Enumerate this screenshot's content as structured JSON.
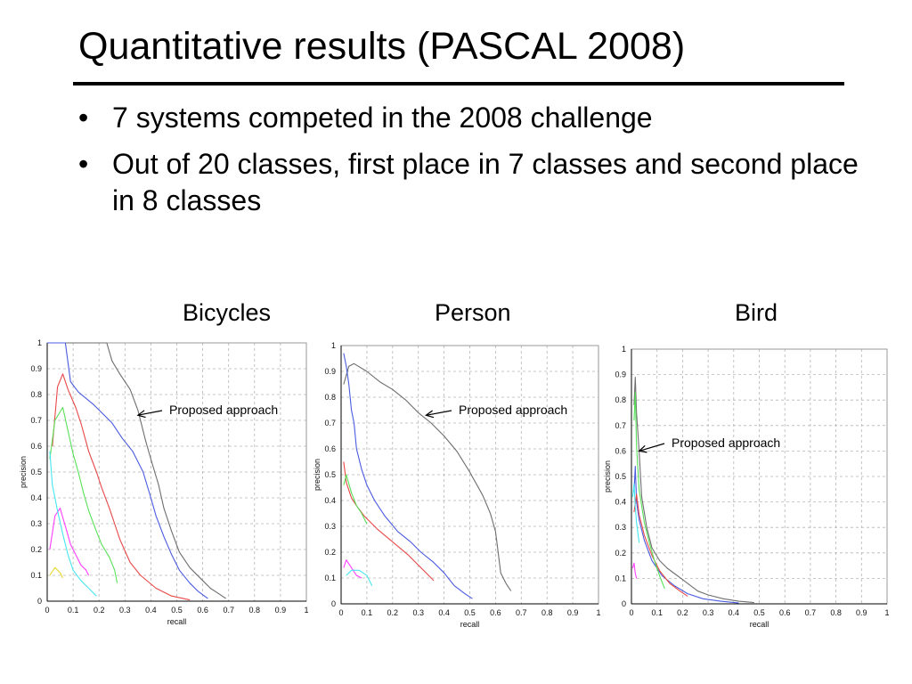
{
  "slide": {
    "title": "Quantitative results (PASCAL 2008)",
    "bullets": [
      "7 systems competed in the 2008 challenge",
      "Out of 20 classes, first place in 7 classes and second place in 8 classes"
    ]
  },
  "chart_data": [
    {
      "type": "line",
      "title": "Bicycles",
      "xlabel": "recall",
      "ylabel": "precision",
      "xlim": [
        0,
        1
      ],
      "ylim": [
        0,
        1
      ],
      "ticks": [
        "0",
        "0.1",
        "0.2",
        "0.3",
        "0.4",
        "0.5",
        "0.6",
        "0.7",
        "0.8",
        "0.9",
        "1"
      ],
      "grid": true,
      "annotation": {
        "text": "Proposed approach",
        "points_to": [
          0.35,
          0.72
        ]
      },
      "series": [
        {
          "color": "#6e6e6e",
          "points": [
            [
              0,
              1
            ],
            [
              0.23,
              1
            ],
            [
              0.25,
              0.93
            ],
            [
              0.28,
              0.88
            ],
            [
              0.32,
              0.82
            ],
            [
              0.35,
              0.74
            ],
            [
              0.38,
              0.62
            ],
            [
              0.4,
              0.55
            ],
            [
              0.43,
              0.45
            ],
            [
              0.45,
              0.36
            ],
            [
              0.48,
              0.27
            ],
            [
              0.51,
              0.19
            ],
            [
              0.55,
              0.13
            ],
            [
              0.6,
              0.08
            ],
            [
              0.63,
              0.05
            ],
            [
              0.66,
              0.03
            ],
            [
              0.69,
              0.01
            ]
          ]
        },
        {
          "color": "#4a5be0",
          "points": [
            [
              0,
              1
            ],
            [
              0.07,
              1
            ],
            [
              0.09,
              0.85
            ],
            [
              0.12,
              0.81
            ],
            [
              0.18,
              0.76
            ],
            [
              0.25,
              0.69
            ],
            [
              0.29,
              0.63
            ],
            [
              0.33,
              0.58
            ],
            [
              0.37,
              0.5
            ],
            [
              0.4,
              0.4
            ],
            [
              0.42,
              0.33
            ],
            [
              0.45,
              0.25
            ],
            [
              0.48,
              0.18
            ],
            [
              0.51,
              0.12
            ],
            [
              0.55,
              0.07
            ],
            [
              0.58,
              0.04
            ],
            [
              0.62,
              0.01
            ]
          ]
        },
        {
          "color": "#e84848",
          "points": [
            [
              0.02,
              0.6
            ],
            [
              0.04,
              0.83
            ],
            [
              0.06,
              0.88
            ],
            [
              0.08,
              0.82
            ],
            [
              0.11,
              0.75
            ],
            [
              0.13,
              0.69
            ],
            [
              0.16,
              0.58
            ],
            [
              0.19,
              0.5
            ],
            [
              0.21,
              0.44
            ],
            [
              0.24,
              0.36
            ],
            [
              0.26,
              0.3
            ],
            [
              0.28,
              0.24
            ],
            [
              0.32,
              0.15
            ],
            [
              0.36,
              0.1
            ],
            [
              0.42,
              0.05
            ],
            [
              0.48,
              0.02
            ],
            [
              0.55,
              0.005
            ]
          ]
        },
        {
          "color": "#58e058",
          "points": [
            [
              0.01,
              0.55
            ],
            [
              0.03,
              0.7
            ],
            [
              0.06,
              0.75
            ],
            [
              0.08,
              0.66
            ],
            [
              0.1,
              0.57
            ],
            [
              0.12,
              0.5
            ],
            [
              0.14,
              0.42
            ],
            [
              0.16,
              0.35
            ],
            [
              0.19,
              0.27
            ],
            [
              0.21,
              0.22
            ],
            [
              0.24,
              0.17
            ],
            [
              0.26,
              0.12
            ],
            [
              0.27,
              0.07
            ]
          ]
        },
        {
          "color": "#ff3dff",
          "points": [
            [
              0.01,
              0.2
            ],
            [
              0.03,
              0.33
            ],
            [
              0.05,
              0.36
            ],
            [
              0.07,
              0.29
            ],
            [
              0.09,
              0.22
            ],
            [
              0.11,
              0.18
            ],
            [
              0.13,
              0.14
            ],
            [
              0.15,
              0.12
            ],
            [
              0.16,
              0.1
            ]
          ]
        },
        {
          "color": "#46e6f0",
          "points": [
            [
              0.01,
              0.58
            ],
            [
              0.02,
              0.45
            ],
            [
              0.04,
              0.35
            ],
            [
              0.06,
              0.26
            ],
            [
              0.08,
              0.18
            ],
            [
              0.1,
              0.12
            ],
            [
              0.13,
              0.08
            ],
            [
              0.16,
              0.05
            ],
            [
              0.19,
              0.02
            ]
          ]
        },
        {
          "color": "#e6d72a",
          "points": [
            [
              0.01,
              0.1
            ],
            [
              0.03,
              0.13
            ],
            [
              0.05,
              0.11
            ],
            [
              0.06,
              0.09
            ]
          ]
        }
      ]
    },
    {
      "type": "line",
      "title": "Person",
      "xlabel": "recall",
      "ylabel": "precision",
      "xlim": [
        0,
        1
      ],
      "ylim": [
        0,
        1
      ],
      "ticks": [
        "0",
        "0.1",
        "0.2",
        "0.3",
        "0.4",
        "0.5",
        "0.6",
        "0.7",
        "0.8",
        "0.9",
        "1"
      ],
      "grid": true,
      "annotation": {
        "text": "Proposed approach",
        "points_to": [
          0.33,
          0.73
        ]
      },
      "series": [
        {
          "color": "#6e6e6e",
          "points": [
            [
              0.01,
              0.85
            ],
            [
              0.03,
              0.92
            ],
            [
              0.05,
              0.93
            ],
            [
              0.1,
              0.9
            ],
            [
              0.15,
              0.86
            ],
            [
              0.2,
              0.83
            ],
            [
              0.25,
              0.79
            ],
            [
              0.3,
              0.74
            ],
            [
              0.35,
              0.7
            ],
            [
              0.4,
              0.65
            ],
            [
              0.45,
              0.59
            ],
            [
              0.5,
              0.51
            ],
            [
              0.55,
              0.42
            ],
            [
              0.58,
              0.35
            ],
            [
              0.6,
              0.28
            ],
            [
              0.61,
              0.2
            ],
            [
              0.62,
              0.12
            ],
            [
              0.64,
              0.08
            ],
            [
              0.66,
              0.05
            ]
          ]
        },
        {
          "color": "#4a5be0",
          "points": [
            [
              0.01,
              0.97
            ],
            [
              0.02,
              0.92
            ],
            [
              0.03,
              0.85
            ],
            [
              0.04,
              0.75
            ],
            [
              0.05,
              0.7
            ],
            [
              0.06,
              0.6
            ],
            [
              0.08,
              0.52
            ],
            [
              0.1,
              0.46
            ],
            [
              0.13,
              0.4
            ],
            [
              0.17,
              0.34
            ],
            [
              0.22,
              0.28
            ],
            [
              0.27,
              0.24
            ],
            [
              0.31,
              0.2
            ],
            [
              0.36,
              0.16
            ],
            [
              0.4,
              0.12
            ],
            [
              0.44,
              0.07
            ],
            [
              0.48,
              0.04
            ],
            [
              0.51,
              0.02
            ]
          ]
        },
        {
          "color": "#e84848",
          "points": [
            [
              0.01,
              0.55
            ],
            [
              0.02,
              0.47
            ],
            [
              0.04,
              0.41
            ],
            [
              0.06,
              0.38
            ],
            [
              0.09,
              0.34
            ],
            [
              0.14,
              0.29
            ],
            [
              0.2,
              0.24
            ],
            [
              0.26,
              0.19
            ],
            [
              0.3,
              0.15
            ],
            [
              0.34,
              0.11
            ],
            [
              0.36,
              0.09
            ]
          ]
        },
        {
          "color": "#58e058",
          "points": [
            [
              0.01,
              0.46
            ],
            [
              0.02,
              0.5
            ],
            [
              0.04,
              0.43
            ],
            [
              0.06,
              0.38
            ],
            [
              0.08,
              0.35
            ],
            [
              0.1,
              0.31
            ]
          ]
        },
        {
          "color": "#ff3dff",
          "points": [
            [
              0.01,
              0.14
            ],
            [
              0.02,
              0.17
            ],
            [
              0.04,
              0.14
            ],
            [
              0.06,
              0.11
            ],
            [
              0.08,
              0.1
            ]
          ]
        },
        {
          "color": "#46e6f0",
          "points": [
            [
              0.02,
              0.11
            ],
            [
              0.04,
              0.13
            ],
            [
              0.07,
              0.13
            ],
            [
              0.1,
              0.11
            ],
            [
              0.12,
              0.07
            ]
          ]
        }
      ]
    },
    {
      "type": "line",
      "title": "Bird",
      "xlabel": "recall",
      "ylabel": "precision",
      "xlim": [
        0,
        1
      ],
      "ylim": [
        0,
        1
      ],
      "ticks": [
        "0",
        "0.1",
        "0.2",
        "0.3",
        "0.4",
        "0.5",
        "0.6",
        "0.7",
        "0.8",
        "0.9",
        "1"
      ],
      "grid": true,
      "annotation": {
        "text": "Proposed approach",
        "points_to": [
          0.03,
          0.6
        ]
      },
      "series": [
        {
          "color": "#6e6e6e",
          "points": [
            [
              0.01,
              0.78
            ],
            [
              0.015,
              0.89
            ],
            [
              0.02,
              0.75
            ],
            [
              0.03,
              0.6
            ],
            [
              0.04,
              0.42
            ],
            [
              0.06,
              0.3
            ],
            [
              0.08,
              0.22
            ],
            [
              0.11,
              0.17
            ],
            [
              0.14,
              0.14
            ],
            [
              0.18,
              0.11
            ],
            [
              0.22,
              0.08
            ],
            [
              0.26,
              0.05
            ],
            [
              0.3,
              0.035
            ],
            [
              0.36,
              0.02
            ],
            [
              0.42,
              0.01
            ],
            [
              0.48,
              0.005
            ]
          ]
        },
        {
          "color": "#4a5be0",
          "points": [
            [
              0.01,
              0.44
            ],
            [
              0.015,
              0.54
            ],
            [
              0.02,
              0.4
            ],
            [
              0.03,
              0.33
            ],
            [
              0.05,
              0.25
            ],
            [
              0.08,
              0.17
            ],
            [
              0.12,
              0.11
            ],
            [
              0.17,
              0.07
            ],
            [
              0.22,
              0.04
            ],
            [
              0.28,
              0.02
            ],
            [
              0.35,
              0.01
            ],
            [
              0.42,
              0.003
            ]
          ]
        },
        {
          "color": "#e84848",
          "points": [
            [
              0.01,
              0.36
            ],
            [
              0.02,
              0.43
            ],
            [
              0.03,
              0.35
            ],
            [
              0.05,
              0.27
            ],
            [
              0.08,
              0.19
            ],
            [
              0.11,
              0.13
            ],
            [
              0.15,
              0.08
            ],
            [
              0.19,
              0.05
            ],
            [
              0.22,
              0.03
            ]
          ]
        },
        {
          "color": "#58e058",
          "points": [
            [
              0.01,
              0.72
            ],
            [
              0.015,
              0.83
            ],
            [
              0.02,
              0.62
            ],
            [
              0.03,
              0.45
            ],
            [
              0.05,
              0.32
            ],
            [
              0.07,
              0.24
            ],
            [
              0.09,
              0.17
            ],
            [
              0.11,
              0.11
            ],
            [
              0.13,
              0.06
            ]
          ]
        },
        {
          "color": "#ff3dff",
          "points": [
            [
              0.005,
              0.14
            ],
            [
              0.01,
              0.16
            ],
            [
              0.015,
              0.12
            ],
            [
              0.02,
              0.1
            ]
          ]
        },
        {
          "color": "#46e6f0",
          "points": [
            [
              0.005,
              0.42
            ],
            [
              0.01,
              0.47
            ],
            [
              0.015,
              0.38
            ],
            [
              0.02,
              0.32
            ],
            [
              0.03,
              0.24
            ]
          ]
        }
      ]
    }
  ]
}
